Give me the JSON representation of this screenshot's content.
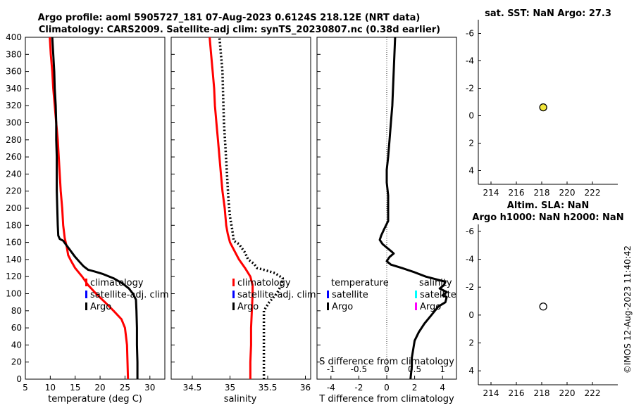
{
  "header": {
    "title_line1": "Argo profile: aoml 5905727_181 07-Aug-2023 0.6124S 218.12E (NRT data)",
    "title_line2": "Climatology: CARS2009. Satellite-adj clim: synTS_20230807.nc (0.38d earlier)"
  },
  "watermark": "©IMOS 12-Aug-2023 11:40:42",
  "colors": {
    "climatology": "#ff0000",
    "satellite_adj": "#0000ff",
    "argo": "#000000",
    "sst_marker": "#f2e63a",
    "salinity_satellite": "#00ffff",
    "salinity_argo": "#ff00ff"
  },
  "chart_data": [
    {
      "id": "temperature",
      "type": "line",
      "xlabel": "temperature (deg C)",
      "ylabel": "",
      "xlim": [
        5,
        33
      ],
      "ylim": [
        400,
        0
      ],
      "xticks": [
        5,
        10,
        15,
        20,
        25,
        30
      ],
      "yticks": [
        0,
        20,
        40,
        60,
        80,
        100,
        120,
        140,
        160,
        180,
        200,
        220,
        240,
        260,
        280,
        300,
        320,
        340,
        360,
        380,
        400
      ],
      "legend": [
        "climatology",
        "satellite-adj. clim",
        "Argo"
      ],
      "series": [
        {
          "name": "climatology",
          "color": "#ff0000",
          "style": "solid",
          "width": 3,
          "points": [
            [
              25.6,
              0
            ],
            [
              25.5,
              20
            ],
            [
              25.4,
              40
            ],
            [
              25.0,
              60
            ],
            [
              24.3,
              70
            ],
            [
              22.7,
              80
            ],
            [
              21.0,
              90
            ],
            [
              19.2,
              100
            ],
            [
              17.6,
              110
            ],
            [
              16.4,
              120
            ],
            [
              15.0,
              130
            ],
            [
              14.2,
              138
            ],
            [
              13.6,
              145
            ],
            [
              13.3,
              155
            ],
            [
              12.9,
              165
            ],
            [
              12.6,
              180
            ],
            [
              12.4,
              200
            ],
            [
              12.1,
              220
            ],
            [
              11.9,
              240
            ],
            [
              11.7,
              260
            ],
            [
              11.5,
              280
            ],
            [
              11.2,
              300
            ],
            [
              10.9,
              320
            ],
            [
              10.6,
              340
            ],
            [
              10.4,
              360
            ],
            [
              10.1,
              380
            ],
            [
              9.9,
              400
            ]
          ]
        },
        {
          "name": "Argo",
          "color": "#000000",
          "style": "solid",
          "width": 3,
          "points": [
            [
              27.5,
              0
            ],
            [
              27.5,
              20
            ],
            [
              27.4,
              40
            ],
            [
              27.4,
              60
            ],
            [
              27.3,
              80
            ],
            [
              27.2,
              93
            ],
            [
              26.6,
              100
            ],
            [
              25.8,
              106
            ],
            [
              24.5,
              112
            ],
            [
              22.7,
              118
            ],
            [
              20.6,
              123
            ],
            [
              18.9,
              126
            ],
            [
              17.6,
              128
            ],
            [
              16.7,
              132
            ],
            [
              15.9,
              137
            ],
            [
              15.0,
              143
            ],
            [
              14.1,
              150
            ],
            [
              13.2,
              157
            ],
            [
              12.6,
              162
            ],
            [
              11.9,
              164
            ],
            [
              11.6,
              168
            ],
            [
              11.5,
              180
            ],
            [
              11.4,
              200
            ],
            [
              11.3,
              220
            ],
            [
              11.3,
              240
            ],
            [
              11.3,
              260
            ],
            [
              11.2,
              280
            ],
            [
              11.2,
              300
            ],
            [
              11.1,
              320
            ],
            [
              10.9,
              340
            ],
            [
              10.8,
              360
            ],
            [
              10.6,
              380
            ],
            [
              10.4,
              400
            ]
          ]
        }
      ]
    },
    {
      "id": "salinity",
      "type": "line",
      "xlabel": "salinity",
      "xlim": [
        34.22,
        36.07
      ],
      "ylim": [
        400,
        0
      ],
      "xticks": [
        34.5,
        35,
        35.5,
        36
      ],
      "legend": [
        "climatology",
        "satellite-adj. clim",
        "Argo"
      ],
      "series": [
        {
          "name": "climatology",
          "color": "#ff0000",
          "style": "solid",
          "width": 3,
          "points": [
            [
              35.27,
              0
            ],
            [
              35.27,
              20
            ],
            [
              35.28,
              40
            ],
            [
              35.28,
              60
            ],
            [
              35.29,
              80
            ],
            [
              35.3,
              100
            ],
            [
              35.3,
              110
            ],
            [
              35.27,
              120
            ],
            [
              35.2,
              130
            ],
            [
              35.12,
              140
            ],
            [
              35.06,
              150
            ],
            [
              35.0,
              160
            ],
            [
              34.97,
              170
            ],
            [
              34.95,
              180
            ],
            [
              34.93,
              200
            ],
            [
              34.9,
              220
            ],
            [
              34.88,
              240
            ],
            [
              34.86,
              260
            ],
            [
              34.84,
              280
            ],
            [
              34.82,
              300
            ],
            [
              34.8,
              320
            ],
            [
              34.79,
              340
            ],
            [
              34.77,
              360
            ],
            [
              34.75,
              380
            ],
            [
              34.73,
              400
            ]
          ]
        },
        {
          "name": "Argo",
          "color": "#000000",
          "style": "dotted",
          "width": 3,
          "points": [
            [
              35.45,
              0
            ],
            [
              35.45,
              20
            ],
            [
              35.45,
              40
            ],
            [
              35.45,
              60
            ],
            [
              35.45,
              80
            ],
            [
              35.52,
              90
            ],
            [
              35.62,
              100
            ],
            [
              35.68,
              110
            ],
            [
              35.7,
              118
            ],
            [
              35.6,
              124
            ],
            [
              35.45,
              128
            ],
            [
              35.36,
              130
            ],
            [
              35.32,
              135
            ],
            [
              35.24,
              140
            ],
            [
              35.2,
              148
            ],
            [
              35.12,
              158
            ],
            [
              35.05,
              162
            ],
            [
              35.03,
              175
            ],
            [
              35.0,
              190
            ],
            [
              34.98,
              210
            ],
            [
              34.96,
              240
            ],
            [
              34.94,
              270
            ],
            [
              34.92,
              300
            ],
            [
              34.91,
              330
            ],
            [
              34.9,
              360
            ],
            [
              34.88,
              380
            ],
            [
              34.86,
              400
            ]
          ]
        }
      ]
    },
    {
      "id": "difference",
      "type": "line",
      "xlabel": "T difference from climatology",
      "xlabel_top": "S difference from climatology",
      "xlim": [
        -5,
        5
      ],
      "ylim": [
        400,
        0
      ],
      "xticks": [
        -4,
        -2,
        0,
        2,
        4
      ],
      "xticks_top": [
        -1,
        -0.5,
        0,
        0.5,
        1
      ],
      "xticks_top_labels": [
        "-1",
        "-0.5",
        "0",
        "0.5",
        "1"
      ],
      "legend_temperature_title": "temperature",
      "legend_salinity_title": "salinity",
      "legend_temperature": [
        "satellite",
        "Argo"
      ],
      "legend_salinity": [
        "satellite",
        "Argo"
      ],
      "series": [
        {
          "name": "T difference",
          "color": "#000000",
          "style": "solid",
          "width": 3,
          "points": [
            [
              1.7,
              0
            ],
            [
              1.8,
              15
            ],
            [
              1.8,
              25
            ],
            [
              1.9,
              35
            ],
            [
              2.0,
              45
            ],
            [
              2.3,
              55
            ],
            [
              2.7,
              65
            ],
            [
              3.2,
              75
            ],
            [
              3.7,
              85
            ],
            [
              4.2,
              90
            ],
            [
              4.3,
              96
            ],
            [
              4.0,
              98
            ],
            [
              4.3,
              102
            ],
            [
              3.8,
              106
            ],
            [
              4.1,
              110
            ],
            [
              4.2,
              114
            ],
            [
              2.8,
              120
            ],
            [
              2.0,
              125
            ],
            [
              1.1,
              130
            ],
            [
              0.3,
              134
            ],
            [
              0.0,
              138
            ],
            [
              0.2,
              143
            ],
            [
              0.5,
              147
            ],
            [
              0.3,
              150
            ],
            [
              -0.3,
              158
            ],
            [
              -0.5,
              163
            ],
            [
              -0.4,
              168
            ],
            [
              -0.2,
              175
            ],
            [
              0.1,
              185
            ],
            [
              0.1,
              200
            ],
            [
              0.1,
              215
            ],
            [
              0.0,
              230
            ],
            [
              0.0,
              245
            ],
            [
              0.1,
              260
            ],
            [
              0.2,
              280
            ],
            [
              0.3,
              300
            ],
            [
              0.4,
              320
            ],
            [
              0.45,
              340
            ],
            [
              0.5,
              360
            ],
            [
              0.55,
              380
            ],
            [
              0.6,
              400
            ]
          ]
        }
      ]
    },
    {
      "id": "sst",
      "type": "scatter",
      "title": "sat. SST: NaN Argo: 27.3",
      "xlim": [
        213,
        224
      ],
      "ylim": [
        -7,
        5
      ],
      "xticks": [
        214,
        216,
        218,
        220,
        222
      ],
      "yticks": [
        4,
        2,
        0,
        -2,
        -4,
        -6
      ],
      "points": [
        {
          "x": 218.12,
          "y": -0.61,
          "fill": "#f2e63a"
        }
      ]
    },
    {
      "id": "altimetry",
      "type": "scatter",
      "title_line1": "Altim. SLA: NaN",
      "title_line2": "Argo h1000: NaN h2000: NaN",
      "xlim": [
        213,
        224
      ],
      "ylim": [
        -6.5,
        5
      ],
      "xticks": [
        214,
        216,
        218,
        220,
        222
      ],
      "yticks": [
        4,
        2,
        0,
        -2,
        -4,
        -6
      ],
      "points": [
        {
          "x": 218.12,
          "y": -0.61,
          "fill": "#ffffff"
        }
      ]
    }
  ]
}
